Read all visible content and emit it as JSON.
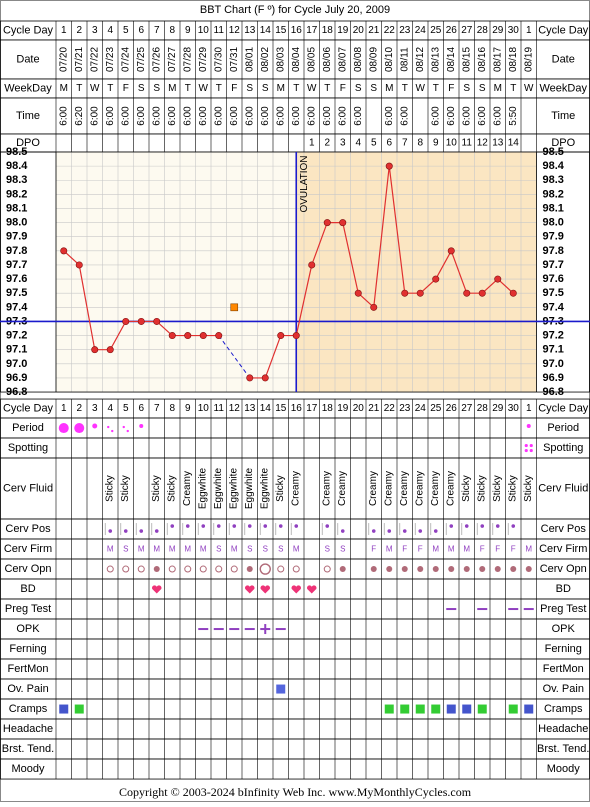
{
  "title": "BBT Chart (F º) for Cycle July 20, 2009",
  "copyright": "Copyright © 2003-2024 bInfinity Web Inc.    www.MyMonthlyCycles.com",
  "colors": {
    "temp_line": "#e03030",
    "coverline": "#1a1acc",
    "luteal_bg": "#fbe6c2",
    "follicular_bg": "#fdfaf0",
    "grid": "#c8c8c8",
    "period": "#ff33ff",
    "fluid_purple": "#9040c0",
    "green": "#33cc33",
    "blue": "#4455cc",
    "orange": "#ff8800"
  },
  "row_labels": {
    "cycle_day": "Cycle Day",
    "date": "Date",
    "weekday": "WeekDay",
    "time": "Time",
    "dpo": "DPO",
    "period": "Period",
    "spotting": "Spotting",
    "cerv_fluid": "Cerv Fluid",
    "cerv_pos": "Cerv Pos",
    "cerv_firm": "Cerv Firm",
    "cerv_opn": "Cerv Opn",
    "bd": "BD",
    "preg_test": "Preg Test",
    "opk": "OPK",
    "ferning": "Ferning",
    "fertmon": "FertMon",
    "ov_pain": "Ov. Pain",
    "cramps": "Cramps",
    "headache": "Headache",
    "brst_tend": "Brst. Tend.",
    "moody": "Moody"
  },
  "ovulation_label": "OVULATION",
  "cycle_days": [
    "1",
    "2",
    "3",
    "4",
    "5",
    "6",
    "7",
    "8",
    "9",
    "10",
    "11",
    "12",
    "13",
    "14",
    "15",
    "16",
    "17",
    "18",
    "19",
    "20",
    "21",
    "22",
    "23",
    "24",
    "25",
    "26",
    "27",
    "28",
    "29",
    "30",
    "1"
  ],
  "dates": [
    "07/20",
    "07/21",
    "07/22",
    "07/23",
    "07/24",
    "07/25",
    "07/26",
    "07/27",
    "07/28",
    "07/29",
    "07/30",
    "07/31",
    "08/01",
    "08/02",
    "08/03",
    "08/04",
    "08/05",
    "08/06",
    "08/07",
    "08/08",
    "08/09",
    "08/10",
    "08/11",
    "08/12",
    "08/13",
    "08/14",
    "08/15",
    "08/16",
    "08/17",
    "08/18",
    "08/19"
  ],
  "weekdays": [
    "M",
    "T",
    "W",
    "T",
    "F",
    "S",
    "S",
    "M",
    "T",
    "W",
    "T",
    "F",
    "S",
    "S",
    "M",
    "T",
    "W",
    "T",
    "F",
    "S",
    "S",
    "M",
    "T",
    "W",
    "T",
    "F",
    "S",
    "S",
    "M",
    "T",
    "W"
  ],
  "times": [
    "6:00",
    "6:20",
    "6:00",
    "6:00",
    "6:00",
    "6:00",
    "6:00",
    "6:00",
    "6:00",
    "6:00",
    "6:00",
    "6:00",
    "6:00",
    "6:00",
    "6:00",
    "6:00",
    "6:00",
    "6:00",
    "6:00",
    "6:00",
    "",
    "6:00",
    "6:00",
    "",
    "6:00",
    "6:00",
    "6:00",
    "6:00",
    "6:00",
    "5:50",
    ""
  ],
  "dpo": [
    "",
    "",
    "",
    "",
    "",
    "",
    "",
    "",
    "",
    "",
    "",
    "",
    "",
    "",
    "",
    "",
    "1",
    "2",
    "3",
    "4",
    "5",
    "6",
    "7",
    "8",
    "9",
    "10",
    "11",
    "12",
    "13",
    "14",
    ""
  ],
  "period": [
    "heavy",
    "heavy",
    "medium",
    "light",
    "light",
    "spot",
    "",
    "",
    "",
    "",
    "",
    "",
    "",
    "",
    "",
    "",
    "",
    "",
    "",
    "",
    "",
    "",
    "",
    "",
    "",
    "",
    "",
    "",
    "",
    "",
    "spot"
  ],
  "spotting": [
    "",
    "",
    "",
    "",
    "",
    "",
    "",
    "",
    "",
    "",
    "",
    "",
    "",
    "",
    "",
    "",
    "",
    "",
    "",
    "",
    "",
    "",
    "",
    "",
    "",
    "",
    "",
    "",
    "",
    "",
    "spot"
  ],
  "cerv_fluid": [
    "",
    "",
    "",
    "Sticky",
    "Sticky",
    "",
    "Sticky",
    "Sticky",
    "Creamy",
    "Eggwhite",
    "Eggwhite",
    "Eggwhite",
    "Eggwhite",
    "Eggwhite",
    "Sticky",
    "Creamy",
    "",
    "Creamy",
    "Creamy",
    "",
    "Creamy",
    "Creamy",
    "Creamy",
    "Creamy",
    "Creamy",
    "Creamy",
    "Sticky",
    "Sticky",
    "Sticky",
    "Sticky",
    "Sticky"
  ],
  "cerv_pos": [
    "",
    "",
    "",
    "low",
    "low",
    "low",
    "low",
    "high",
    "high",
    "high",
    "high",
    "high",
    "high",
    "high",
    "high",
    "high",
    "",
    "high",
    "low",
    "",
    "low",
    "low",
    "low",
    "low",
    "low",
    "high",
    "high",
    "high",
    "high",
    "high",
    ""
  ],
  "cerv_firm": [
    "",
    "",
    "",
    "M",
    "S",
    "M",
    "M",
    "M",
    "M",
    "M",
    "S",
    "M",
    "S",
    "S",
    "S",
    "M",
    "",
    "S",
    "S",
    "",
    "F",
    "M",
    "F",
    "F",
    "M",
    "M",
    "M",
    "F",
    "F",
    "F",
    "M"
  ],
  "cerv_opn": [
    "",
    "",
    "",
    "open",
    "open",
    "open",
    "filled",
    "open",
    "open",
    "open",
    "open",
    "open",
    "filled",
    "wide",
    "open",
    "open",
    "",
    "open",
    "filled",
    "",
    "filled",
    "filled",
    "filled",
    "filled",
    "filled",
    "filled",
    "filled",
    "filled",
    "filled",
    "filled",
    "filled"
  ],
  "bd": [
    "",
    "",
    "",
    "",
    "",
    "",
    "heart",
    "",
    "",
    "",
    "",
    "",
    "heart",
    "heart",
    "",
    "heart",
    "heart",
    "",
    "",
    "",
    "",
    "",
    "",
    "",
    "",
    "",
    "",
    "",
    "",
    "",
    "",
    ""
  ],
  "preg_test": [
    "",
    "",
    "",
    "",
    "",
    "",
    "",
    "",
    "",
    "",
    "",
    "",
    "",
    "",
    "",
    "",
    "",
    "",
    "",
    "",
    "",
    "",
    "",
    "",
    "",
    "neg",
    "",
    "neg",
    "",
    "neg",
    "neg"
  ],
  "opk": [
    "",
    "",
    "",
    "",
    "",
    "",
    "",
    "",
    "",
    "neg",
    "neg",
    "neg",
    "neg",
    "pos",
    "neg",
    "",
    "",
    "",
    "",
    "",
    "",
    "",
    "",
    "",
    "",
    "",
    "",
    "",
    "",
    "",
    ""
  ],
  "ov_pain": [
    "",
    "",
    "",
    "",
    "",
    "",
    "",
    "",
    "",
    "",
    "",
    "",
    "",
    "",
    "yes",
    "",
    "",
    "",
    "",
    "",
    "",
    "",
    "",
    "",
    "",
    "",
    "",
    "",
    "",
    "",
    ""
  ],
  "cramps": [
    "blue",
    "green",
    "",
    "",
    "",
    "",
    "",
    "",
    "",
    "",
    "",
    "",
    "",
    "",
    "",
    "",
    "",
    "",
    "",
    "",
    "",
    "green",
    "green",
    "green",
    "green",
    "blue",
    "blue",
    "green",
    "",
    "green",
    "blue"
  ],
  "chart_data": {
    "type": "line",
    "title": "BBT Chart (F º) for Cycle July 20, 2009",
    "xlabel": "Cycle Day",
    "ylabel": "",
    "ylim": [
      96.8,
      98.5
    ],
    "y_ticks": [
      "98.5",
      "98.4",
      "98.3",
      "98.2",
      "98.1",
      "98.0",
      "97.9",
      "97.8",
      "97.7",
      "97.6",
      "97.5",
      "97.4",
      "97.3",
      "97.2",
      "97.1",
      "97.0",
      "96.9",
      "96.8"
    ],
    "x": [
      1,
      2,
      3,
      4,
      5,
      6,
      7,
      8,
      9,
      10,
      11,
      12,
      13,
      14,
      15,
      16,
      17,
      18,
      19,
      20,
      21,
      22,
      23,
      24,
      25,
      26,
      27,
      28,
      29,
      30,
      31
    ],
    "series": [
      {
        "values": [
          97.8,
          97.7,
          97.1,
          97.1,
          97.3,
          97.3,
          97.3,
          97.2,
          97.2,
          97.2,
          97.2,
          null,
          96.9,
          96.9,
          97.2,
          97.2,
          97.7,
          98.0,
          98.0,
          97.5,
          97.4,
          98.4,
          97.5,
          97.5,
          97.6,
          97.8,
          97.5,
          97.5,
          97.6,
          97.5,
          null
        ]
      }
    ],
    "discarded_point": {
      "day": 12,
      "value": 97.4
    },
    "coverline": 97.3,
    "ovulation_day": 16,
    "dotted_segments": [
      [
        11,
        13
      ]
    ]
  }
}
